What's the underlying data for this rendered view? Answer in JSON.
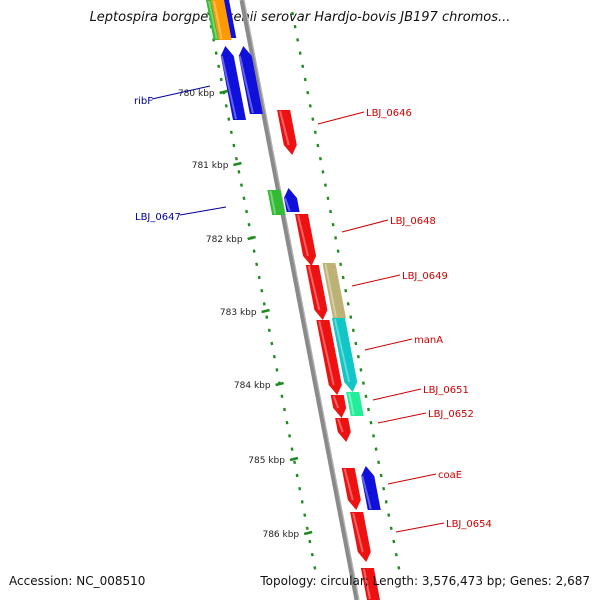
{
  "title": "Leptospira borgpetersenii serovar Hardjo-bovis JB197 chromos...",
  "footer": {
    "accession": "Accession: NC_008510",
    "topology": "Topology: circular; Length: 3,576,473 bp; Genes: 2,687"
  },
  "colors": {
    "backbone": "#888888",
    "tick": "#1f8a1f",
    "forward_label": "#cc0000",
    "reverse_label": "#000099",
    "red": "#ee1111",
    "blue": "#1010dd",
    "green": "#33bb33",
    "olive": "#bdb276",
    "cyan": "#11c6c6",
    "mint": "#22ee99",
    "orange": "#ff9900"
  },
  "kbp_ticks": [
    "780 kbp",
    "781 kbp",
    "782 kbp",
    "783 kbp",
    "784 kbp",
    "785 kbp",
    "786 kbp"
  ],
  "gene_labels": [
    {
      "text": "ribF",
      "strand": "reverse"
    },
    {
      "text": "LBJ_0646",
      "strand": "forward"
    },
    {
      "text": "LBJ_0647",
      "strand": "reverse"
    },
    {
      "text": "LBJ_0648",
      "strand": "forward"
    },
    {
      "text": "LBJ_0649",
      "strand": "forward"
    },
    {
      "text": "manA",
      "strand": "forward"
    },
    {
      "text": "LBJ_0651",
      "strand": "forward"
    },
    {
      "text": "LBJ_0652",
      "strand": "forward"
    },
    {
      "text": "coaE",
      "strand": "forward"
    },
    {
      "text": "LBJ_0654",
      "strand": "forward"
    }
  ]
}
